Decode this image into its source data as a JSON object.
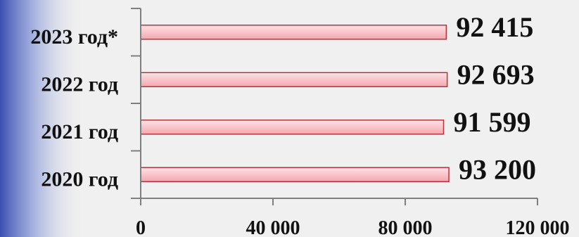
{
  "chart_data": {
    "type": "bar",
    "orientation": "horizontal",
    "categories": [
      "2023 год*",
      "2022 год",
      "2021 год",
      "2020 год"
    ],
    "values": [
      92415,
      92693,
      91599,
      93200
    ],
    "data_labels": [
      "92 415",
      "92 693",
      "91 599",
      "93 200"
    ],
    "x_ticks": [
      "0",
      "40 000",
      "80 000",
      "120 000"
    ],
    "tick_values": [
      0,
      40000,
      80000,
      120000
    ],
    "xlim": [
      0,
      120000
    ],
    "grid": false,
    "legend": "none",
    "colors": {
      "bar_fill_light": "#fde3e6",
      "bar_fill_dark": "#f4a7ae",
      "bar_stroke": "#b8333b",
      "axis": "#7f7f7f",
      "text": "#111111",
      "background": "#f0f0f0",
      "side_band": "#3a4fb0"
    }
  }
}
